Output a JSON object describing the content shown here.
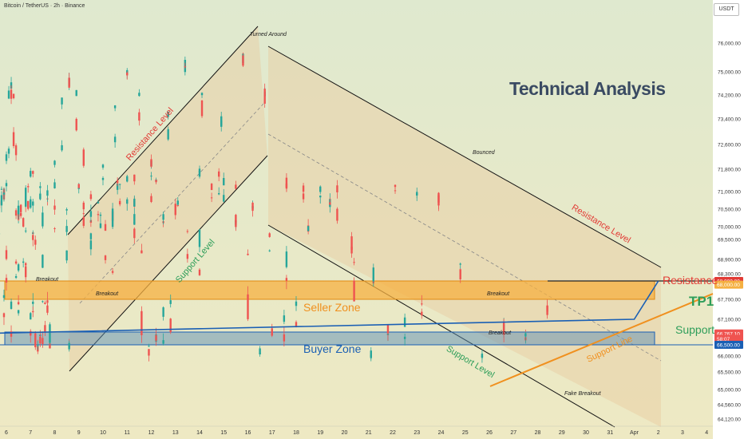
{
  "header": {
    "symbol": "Bitcoin / TetherUS · 2h · Binance",
    "currency_button": "USDT",
    "title": "Technical Analysis"
  },
  "colors": {
    "background_top": "#dfe9cf",
    "background_bottom": "#eee9c3",
    "candle_up": "#26a69a",
    "candle_down": "#ef5350",
    "resistance_zone": "#f5b041",
    "support_zone": "#5d8fb5",
    "channel_fill": "#e8c9a0",
    "red_label": "#e23b35",
    "orange_label": "#f0901e",
    "blue_label": "#1a5fb4",
    "green_label": "#2e9e5a"
  },
  "annotations": {
    "turned_around": "Turned Around",
    "bounced": "Bounced",
    "breakout_1": "Breakout",
    "breakout_2": "Breakout",
    "breakout_3": "Breakout",
    "breakout_4": "Breakout",
    "fake_breakout": "Fake Breakout",
    "resistance_level_1": "Resistance Level",
    "resistance_level_2": "Resistance Level",
    "support_level_1": "Support Level",
    "support_level_2": "Support Level",
    "support_line": "Support Line",
    "seller_zone": "Seller Zone",
    "buyer_zone": "Buyer Zone",
    "resistance": "Resistance",
    "support": "Support",
    "tp1": "TP1"
  },
  "chart_data": {
    "type": "candlestick",
    "title": "",
    "x_labels": [
      "6",
      "7",
      "8",
      "9",
      "10",
      "11",
      "12",
      "13",
      "14",
      "15",
      "16",
      "17",
      "18",
      "19",
      "20",
      "21",
      "22",
      "23",
      "24",
      "25",
      "26",
      "27",
      "28",
      "29",
      "30",
      "31",
      "Apr",
      "2",
      "3",
      "4"
    ],
    "y_ticks": [
      64120,
      64560,
      65000,
      65500,
      66000,
      66500,
      67100,
      67700,
      68000,
      68300,
      68900,
      69500,
      70000,
      70500,
      71000,
      71800,
      72600,
      73400,
      74200,
      75000,
      76000
    ],
    "y_tick_labels": [
      "64,120.00",
      "64,560.00",
      "65,000.00",
      "65,500.00",
      "66,000.00",
      "66,500.00",
      "67,100.00",
      "67,700.00",
      "68,000.00",
      "68,300.00",
      "68,900.00",
      "69,500.00",
      "70,000.00",
      "70,500.00",
      "71,000.00",
      "71,800.00",
      "72,600.00",
      "73,400.00",
      "74,200.00",
      "75,000.00",
      "76,000.00"
    ],
    "price_badges": [
      {
        "label": "68,000.00",
        "value": 68000,
        "color": "#e23b35"
      },
      {
        "label": "68,000.00",
        "value": 67940,
        "color": "#f5b041"
      },
      {
        "label": "66,767.10",
        "value": 66767,
        "color": "#ef5350"
      },
      {
        "label": "58:07",
        "value": 66640,
        "color": "#ef5350"
      },
      {
        "label": "66,500.00",
        "value": 66500,
        "color": "#1a5fb4"
      }
    ],
    "zones": [
      {
        "name": "Seller Zone",
        "low": 67700,
        "high": 68000
      },
      {
        "name": "Buyer Zone",
        "low": 66500,
        "high": 66800
      }
    ],
    "close_path": [
      [
        "6",
        71000
      ],
      [
        "6.5",
        69800
      ],
      [
        "7",
        68300
      ],
      [
        "7.5",
        67800
      ],
      [
        "8",
        67500
      ],
      [
        "8.5",
        67100
      ],
      [
        "9",
        66300
      ],
      [
        "9.5",
        68100
      ],
      [
        "10",
        69500
      ],
      [
        "10.5",
        70800
      ],
      [
        "11",
        70300
      ],
      [
        "11.5",
        69600
      ],
      [
        "12",
        70200
      ],
      [
        "12.5",
        70700
      ],
      [
        "13",
        71400
      ],
      [
        "13.5",
        71000
      ],
      [
        "14",
        70600
      ],
      [
        "14.5",
        71100
      ],
      [
        "15",
        71800
      ],
      [
        "15.5",
        72200
      ],
      [
        "16",
        73300
      ],
      [
        "16.5",
        74300
      ],
      [
        "17",
        75600
      ],
      [
        "17.5",
        74200
      ],
      [
        "18",
        74300
      ],
      [
        "18.5",
        72600
      ],
      [
        "19",
        71200
      ],
      [
        "19.5",
        70400
      ],
      [
        "20",
        69900
      ],
      [
        "20.5",
        70500
      ],
      [
        "21",
        70700
      ],
      [
        "21.5",
        70300
      ],
      [
        "22",
        69300
      ],
      [
        "22.5",
        68700
      ],
      [
        "23",
        67900
      ],
      [
        "23.5",
        71200
      ],
      [
        "24",
        71100
      ],
      [
        "24.5",
        70600
      ],
      [
        "25",
        70900
      ],
      [
        "25.5",
        71700
      ],
      [
        "26",
        70800
      ],
      [
        "26.5",
        69400
      ],
      [
        "27",
        68600
      ],
      [
        "27.5",
        66300
      ],
      [
        "28",
        65900
      ],
      [
        "28.5",
        66600
      ],
      [
        "29",
        66900
      ],
      [
        "29.5",
        66600
      ],
      [
        "30",
        66700
      ],
      [
        "30.5",
        67700
      ],
      [
        "31",
        67400
      ],
      [
        "31.5",
        66767
      ]
    ],
    "projection": [
      [
        "31.5",
        66767
      ],
      [
        "Apr",
        67100
      ],
      [
        "2",
        68000
      ]
    ]
  }
}
